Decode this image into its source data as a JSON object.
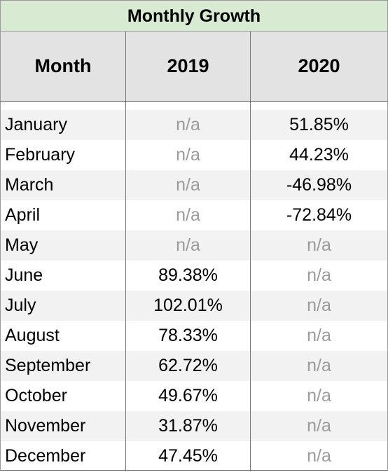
{
  "table": {
    "title": "Monthly Growth",
    "title_bg": "#d9ead3",
    "header_bg": "#e3e3e3",
    "columns": [
      "Month",
      "2019",
      "2020"
    ],
    "rows": [
      {
        "month": "January",
        "y2019": "n/a",
        "y2020": "51.85%"
      },
      {
        "month": "February",
        "y2019": "n/a",
        "y2020": "44.23%"
      },
      {
        "month": "March",
        "y2019": "n/a",
        "y2020": "-46.98%"
      },
      {
        "month": "April",
        "y2019": "n/a",
        "y2020": "-72.84%"
      },
      {
        "month": "May",
        "y2019": "n/a",
        "y2020": "n/a"
      },
      {
        "month": "June",
        "y2019": "89.38%",
        "y2020": "n/a"
      },
      {
        "month": "July",
        "y2019": "102.01%",
        "y2020": "n/a"
      },
      {
        "month": "August",
        "y2019": "78.33%",
        "y2020": "n/a"
      },
      {
        "month": "September",
        "y2019": "62.72%",
        "y2020": "n/a"
      },
      {
        "month": "October",
        "y2019": "49.67%",
        "y2020": "n/a"
      },
      {
        "month": "November",
        "y2019": "31.87%",
        "y2020": "n/a"
      },
      {
        "month": "December",
        "y2019": "47.45%",
        "y2020": "n/a"
      }
    ]
  }
}
